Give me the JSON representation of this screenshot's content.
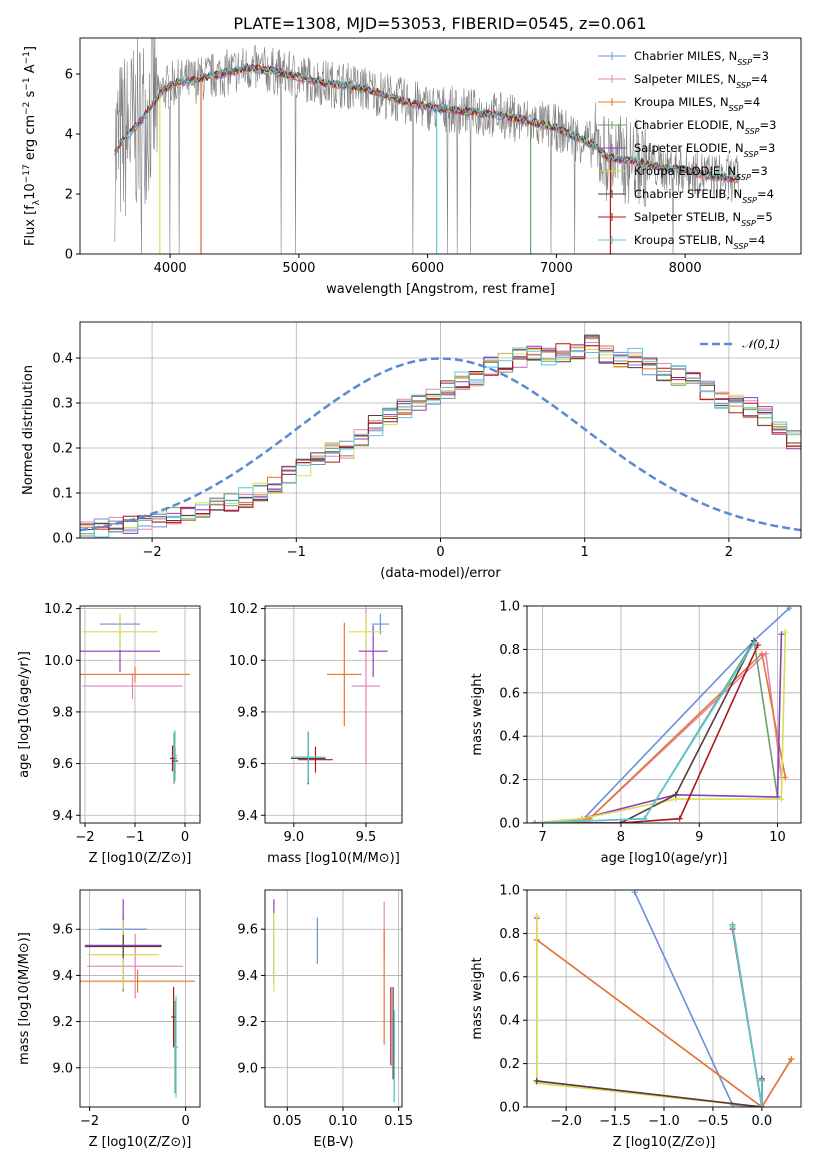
{
  "title": "PLATE=1308, MJD=53053, FIBERID=0545, z=0.061",
  "series_colors": [
    "#6a8fd8",
    "#e384b6",
    "#e07a30",
    "#6aa06a",
    "#8e3fb8",
    "#d8dd55",
    "#5a3a3a",
    "#b01818",
    "#5bc8d8"
  ],
  "chart_data": [
    {
      "id": "spectrum",
      "type": "line",
      "xlabel": "wavelength [Angstrom, rest frame]",
      "ylabel": "Flux [f_λ 10^-17 erg cm^-2 s^-1 A^-1]",
      "xlim": [
        3300,
        8900
      ],
      "ylim": [
        0,
        7.2
      ],
      "xticks": [
        4000,
        5000,
        6000,
        7000,
        8000
      ],
      "yticks": [
        0,
        2,
        4,
        6
      ],
      "data_color": "#808080",
      "continuum_points": [
        [
          3570,
          3.4
        ],
        [
          3650,
          3.9
        ],
        [
          3750,
          4.3
        ],
        [
          3850,
          4.9
        ],
        [
          3950,
          5.5
        ],
        [
          4050,
          5.7
        ],
        [
          4200,
          5.8
        ],
        [
          4400,
          6.0
        ],
        [
          4600,
          6.2
        ],
        [
          4800,
          6.1
        ],
        [
          5000,
          5.9
        ],
        [
          5200,
          5.7
        ],
        [
          5400,
          5.6
        ],
        [
          5600,
          5.4
        ],
        [
          5800,
          5.1
        ],
        [
          6000,
          4.9
        ],
        [
          6200,
          4.8
        ],
        [
          6400,
          4.7
        ],
        [
          6600,
          4.6
        ],
        [
          6800,
          4.4
        ],
        [
          7000,
          4.2
        ],
        [
          7200,
          3.8
        ],
        [
          7300,
          3.6
        ],
        [
          7400,
          3.2
        ],
        [
          7600,
          3.1
        ],
        [
          7800,
          2.9
        ],
        [
          8000,
          2.8
        ],
        [
          8200,
          2.6
        ],
        [
          8400,
          2.5
        ]
      ],
      "legend": [
        {
          "label": "Chabrier MILES, N",
          "sub": "SSP",
          "val": "=3"
        },
        {
          "label": "Salpeter MILES, N",
          "sub": "SSP",
          "val": "=4"
        },
        {
          "label": "Kroupa MILES, N",
          "sub": "SSP",
          "val": "=4"
        },
        {
          "label": "Chabrier ELODIE, N",
          "sub": "SSP",
          "val": "=3"
        },
        {
          "label": "Salpeter ELODIE, N",
          "sub": "SSP",
          "val": "=3"
        },
        {
          "label": "Kroupa ELODIE, N",
          "sub": "SSP",
          "val": "=3"
        },
        {
          "label": "Chabrier STELIB, N",
          "sub": "SSP",
          "val": "=4"
        },
        {
          "label": "Salpeter STELIB, N",
          "sub": "SSP",
          "val": "=5"
        },
        {
          "label": "Kroupa STELIB, N",
          "sub": "SSP",
          "val": "=4"
        }
      ]
    },
    {
      "id": "residuals",
      "type": "step",
      "xlabel": "(data-model)/error",
      "ylabel": "Normed distribution",
      "xlim": [
        -2.5,
        2.5
      ],
      "ylim": [
        0,
        0.48
      ],
      "xticks": [
        -2,
        -1,
        0,
        1,
        2
      ],
      "xticklabels": [
        "−2",
        "−1",
        "0",
        "1",
        "2"
      ],
      "yticks": [
        0,
        0.1,
        0.2,
        0.3,
        0.4
      ],
      "yticklabels": [
        "0.0",
        "0.1",
        "0.2",
        "0.3",
        "0.4"
      ],
      "gaussian_label": "𝒩(0,1)",
      "bin_width": 0.1,
      "bin_start": -2.5,
      "base_heights": [
        0.015,
        0.02,
        0.025,
        0.03,
        0.04,
        0.045,
        0.05,
        0.05,
        0.06,
        0.07,
        0.08,
        0.09,
        0.1,
        0.12,
        0.14,
        0.16,
        0.18,
        0.19,
        0.2,
        0.22,
        0.25,
        0.27,
        0.29,
        0.3,
        0.31,
        0.33,
        0.35,
        0.36,
        0.38,
        0.39,
        0.4,
        0.41,
        0.4,
        0.41,
        0.42,
        0.43,
        0.41,
        0.4,
        0.4,
        0.38,
        0.37,
        0.36,
        0.35,
        0.33,
        0.31,
        0.3,
        0.29,
        0.27,
        0.25,
        0.22,
        0.2,
        0.18,
        0.16,
        0.14,
        0.12,
        0.1,
        0.09,
        0.08,
        0.07,
        0.06,
        0.055,
        0.05,
        0.045,
        0.04,
        0.035,
        0.03,
        0.028,
        0.025,
        0.022,
        0.02,
        0.018,
        0.016,
        0.014,
        0.012,
        0.01,
        0.01
      ]
    },
    {
      "id": "age_vs_Z",
      "type": "errorbar",
      "xlabel": "Z [log10(Z/Z⊙)]",
      "ylabel": "age [log10(age/yr)]",
      "xlim": [
        -2.1,
        0.3
      ],
      "ylim": [
        9.37,
        10.21
      ],
      "xticks": [
        -2,
        -1,
        0
      ],
      "xticklabels": [
        "−2",
        "−1",
        "0"
      ],
      "yticks": [
        9.4,
        9.6,
        9.8,
        10.0,
        10.2
      ],
      "yticklabels": [
        "9.4",
        "9.6",
        "9.8",
        "10.0",
        "10.2"
      ],
      "points": [
        {
          "c": 0,
          "x": -1.3,
          "y": 10.14,
          "xe": 0.4,
          "ye": 0.03
        },
        {
          "c": 1,
          "x": -1.05,
          "y": 9.9,
          "xe": 1.0,
          "ye": 0.05
        },
        {
          "c": 2,
          "x": -1.0,
          "y": 9.945,
          "xe": 1.1,
          "ye": 0.03
        },
        {
          "c": 3,
          "x": -0.22,
          "y": 9.62,
          "xe": 0.06,
          "ye": 0.1
        },
        {
          "c": 4,
          "x": -1.3,
          "y": 10.035,
          "xe": 0.8,
          "ye": 0.08
        },
        {
          "c": 5,
          "x": -1.3,
          "y": 10.11,
          "xe": 0.75,
          "ye": 0.07
        },
        {
          "c": 6,
          "x": -0.2,
          "y": 9.61,
          "xe": 0.06,
          "ye": 0.05
        },
        {
          "c": 7,
          "x": -0.25,
          "y": 9.62,
          "xe": 0.05,
          "ye": 0.05
        },
        {
          "c": 8,
          "x": -0.2,
          "y": 9.63,
          "xe": 0.05,
          "ye": 0.1
        }
      ]
    },
    {
      "id": "age_vs_mass",
      "type": "errorbar",
      "xlabel": "mass [log10(M/M⊙)]",
      "ylabel": "",
      "xlim": [
        8.8,
        9.75
      ],
      "ylim": [
        9.37,
        10.21
      ],
      "xticks": [
        9.0,
        9.5
      ],
      "xticklabels": [
        "9.0",
        "9.5"
      ],
      "yticks": [
        9.4,
        9.6,
        9.8,
        10.0,
        10.2
      ],
      "yticklabels": [
        "9.4",
        "9.6",
        "9.8",
        "10.0",
        "10.2"
      ],
      "points": [
        {
          "c": 0,
          "x": 9.6,
          "y": 10.14,
          "xe": 0.06,
          "ye": 0.04
        },
        {
          "c": 1,
          "x": 9.5,
          "y": 9.9,
          "xe": 0.1,
          "ye": 0.3
        },
        {
          "c": 2,
          "x": 9.35,
          "y": 9.945,
          "xe": 0.12,
          "ye": 0.2
        },
        {
          "c": 3,
          "x": 9.1,
          "y": 9.62,
          "xe": 0.12,
          "ye": 0.1
        },
        {
          "c": 4,
          "x": 9.55,
          "y": 10.035,
          "xe": 0.1,
          "ye": 0.1
        },
        {
          "c": 5,
          "x": 9.5,
          "y": 10.11,
          "xe": 0.12,
          "ye": 0.07
        },
        {
          "c": 6,
          "x": 9.1,
          "y": 9.62,
          "xe": 0.12,
          "ye": 0.1
        },
        {
          "c": 7,
          "x": 9.15,
          "y": 9.615,
          "xe": 0.12,
          "ye": 0.05
        },
        {
          "c": 8,
          "x": 9.1,
          "y": 9.625,
          "xe": 0.12,
          "ye": 0.1
        }
      ]
    },
    {
      "id": "massweight_vs_age",
      "type": "line",
      "xlabel": "age [log10(age/yr)]",
      "ylabel": "mass weight",
      "xlim": [
        6.8,
        10.3
      ],
      "ylim": [
        0,
        1.0
      ],
      "xticks": [
        7,
        8,
        9,
        10
      ],
      "xticklabels": [
        "7",
        "8",
        "9",
        "10"
      ],
      "yticks": [
        0,
        0.2,
        0.4,
        0.6,
        0.8,
        1.0
      ],
      "yticklabels": [
        "0.0",
        "0.2",
        "0.4",
        "0.6",
        "0.8",
        "1.0"
      ],
      "series": [
        {
          "c": 0,
          "x": [
            6.9,
            7.5,
            9.7,
            10.15
          ],
          "y": [
            0.0,
            0.01,
            0.84,
            0.99
          ]
        },
        {
          "c": 1,
          "x": [
            6.9,
            7.6,
            9.85,
            10.05
          ],
          "y": [
            0.0,
            0.02,
            0.78,
            0.21
          ]
        },
        {
          "c": 2,
          "x": [
            6.9,
            7.6,
            9.8,
            10.1
          ],
          "y": [
            0.0,
            0.02,
            0.78,
            0.21
          ]
        },
        {
          "c": 3,
          "x": [
            6.9,
            8.3,
            9.7,
            10.0
          ],
          "y": [
            0.0,
            0.02,
            0.84,
            0.12
          ]
        },
        {
          "c": 4,
          "x": [
            6.9,
            7.5,
            8.7,
            10.0,
            10.05
          ],
          "y": [
            0.0,
            0.02,
            0.13,
            0.12,
            0.87
          ]
        },
        {
          "c": 5,
          "x": [
            6.9,
            7.5,
            8.7,
            10.05,
            10.1
          ],
          "y": [
            0.0,
            0.02,
            0.11,
            0.11,
            0.88
          ]
        },
        {
          "c": 6,
          "x": [
            6.9,
            8.0,
            8.7,
            9.7
          ],
          "y": [
            0.0,
            0.0,
            0.13,
            0.84
          ]
        },
        {
          "c": 7,
          "x": [
            6.9,
            8.0,
            8.75,
            9.75
          ],
          "y": [
            0.0,
            0.0,
            0.02,
            0.82
          ]
        },
        {
          "c": 8,
          "x": [
            6.9,
            8.3,
            9.7
          ],
          "y": [
            0.0,
            0.02,
            0.83
          ]
        }
      ]
    },
    {
      "id": "mass_vs_Z",
      "type": "errorbar",
      "xlabel": "Z [log10(Z/Z⊙)]",
      "ylabel": "mass [log10(M/M⊙)]",
      "xlim": [
        -2.2,
        0.3
      ],
      "ylim": [
        8.83,
        9.77
      ],
      "xticks": [
        -2,
        0
      ],
      "xticklabels": [
        "−2",
        "0"
      ],
      "yticks": [
        9.0,
        9.2,
        9.4,
        9.6
      ],
      "yticklabels": [
        "9.0",
        "9.2",
        "9.4",
        "9.6"
      ],
      "points": [
        {
          "c": 0,
          "x": -1.3,
          "y": 9.6,
          "xe": 0.5,
          "ye": 0.05
        },
        {
          "c": 1,
          "x": -1.05,
          "y": 9.44,
          "xe": 1.0,
          "ye": 0.14
        },
        {
          "c": 2,
          "x": -1.0,
          "y": 9.375,
          "xe": 1.2,
          "ye": 0.05
        },
        {
          "c": 3,
          "x": -0.22,
          "y": 9.09,
          "xe": 0.05,
          "ye": 0.2
        },
        {
          "c": 4,
          "x": -1.3,
          "y": 9.53,
          "xe": 0.8,
          "ye": 0.2
        },
        {
          "c": 5,
          "x": -1.3,
          "y": 9.49,
          "xe": 0.75,
          "ye": 0.15
        },
        {
          "c": 6,
          "x": -1.3,
          "y": 9.525,
          "xe": 0.8,
          "ye": 0.05
        },
        {
          "c": 7,
          "x": -0.25,
          "y": 9.22,
          "xe": 0.05,
          "ye": 0.13
        },
        {
          "c": 8,
          "x": -0.2,
          "y": 9.09,
          "xe": 0.05,
          "ye": 0.22
        }
      ]
    },
    {
      "id": "mass_vs_EBV",
      "type": "errorbar",
      "xlabel": "E(B-V)",
      "ylabel": "",
      "xlim": [
        0.03,
        0.153
      ],
      "ylim": [
        8.83,
        9.77
      ],
      "xticks": [
        0.05,
        0.1,
        0.15
      ],
      "xticklabels": [
        "0.05",
        "0.10",
        "0.15"
      ],
      "yticks": [
        9.0,
        9.2,
        9.4,
        9.6
      ],
      "yticklabels": [
        "9.0",
        "9.2",
        "9.4",
        "9.6"
      ],
      "points": [
        {
          "c": 0,
          "x": 0.077,
          "y": 9.55,
          "xe": 0,
          "ye": 0.1
        },
        {
          "c": 1,
          "x": 0.137,
          "y": 9.6,
          "xe": 0,
          "ye": 0.12
        },
        {
          "c": 2,
          "x": 0.137,
          "y": 9.35,
          "xe": 0,
          "ye": 0.25
        },
        {
          "c": 3,
          "x": 0.146,
          "y": 9.05,
          "xe": 0,
          "ye": 0.2
        },
        {
          "c": 4,
          "x": 0.038,
          "y": 9.55,
          "xe": 0,
          "ye": 0.18
        },
        {
          "c": 5,
          "x": 0.038,
          "y": 9.5,
          "xe": 0,
          "ye": 0.17
        },
        {
          "c": 6,
          "x": 0.145,
          "y": 9.15,
          "xe": 0,
          "ye": 0.2
        },
        {
          "c": 7,
          "x": 0.143,
          "y": 9.18,
          "xe": 0,
          "ye": 0.17
        },
        {
          "c": 8,
          "x": 0.146,
          "y": 9.05,
          "xe": 0,
          "ye": 0.2
        }
      ]
    },
    {
      "id": "massweight_vs_Z",
      "type": "line",
      "xlabel": "Z [log10(Z/Z⊙)]",
      "ylabel": "mass weight",
      "xlim": [
        -2.4,
        0.4
      ],
      "ylim": [
        0,
        1.0
      ],
      "xticks": [
        -2.0,
        -1.5,
        -1.0,
        -0.5,
        0.0
      ],
      "xticklabels": [
        "−2.0",
        "−1.5",
        "−1.0",
        "−0.5",
        "0.0"
      ],
      "yticks": [
        0,
        0.2,
        0.4,
        0.6,
        0.8,
        1.0
      ],
      "yticklabels": [
        "0.0",
        "0.2",
        "0.4",
        "0.6",
        "0.8",
        "1.0"
      ],
      "series": [
        {
          "c": 0,
          "x": [
            -1.3,
            -0.3,
            0.0
          ],
          "y": [
            0.99,
            0.01,
            0.0
          ]
        },
        {
          "c": 1,
          "x": [
            -2.3,
            0.0,
            0.3
          ],
          "y": [
            0.77,
            0.0,
            0.22
          ]
        },
        {
          "c": 2,
          "x": [
            -2.3,
            0.0,
            0.3
          ],
          "y": [
            0.77,
            0.0,
            0.22
          ]
        },
        {
          "c": 3,
          "x": [
            -0.3,
            0.0,
            -0.0
          ],
          "y": [
            0.84,
            0.0,
            0.13
          ]
        },
        {
          "c": 4,
          "x": [
            -2.3,
            -2.3,
            0.0
          ],
          "y": [
            0.87,
            0.12,
            0.0
          ]
        },
        {
          "c": 5,
          "x": [
            -2.3,
            -2.3,
            0.0
          ],
          "y": [
            0.88,
            0.11,
            0.0
          ]
        },
        {
          "c": 6,
          "x": [
            -2.3,
            0.0,
            0.0
          ],
          "y": [
            0.12,
            0.0,
            0.13
          ]
        },
        {
          "c": 7,
          "x": [
            -0.3,
            0.0,
            0.0
          ],
          "y": [
            0.82,
            0.0,
            0.12
          ]
        },
        {
          "c": 8,
          "x": [
            -0.3,
            0.0,
            0.0
          ],
          "y": [
            0.83,
            0.0,
            0.12
          ]
        }
      ]
    }
  ]
}
